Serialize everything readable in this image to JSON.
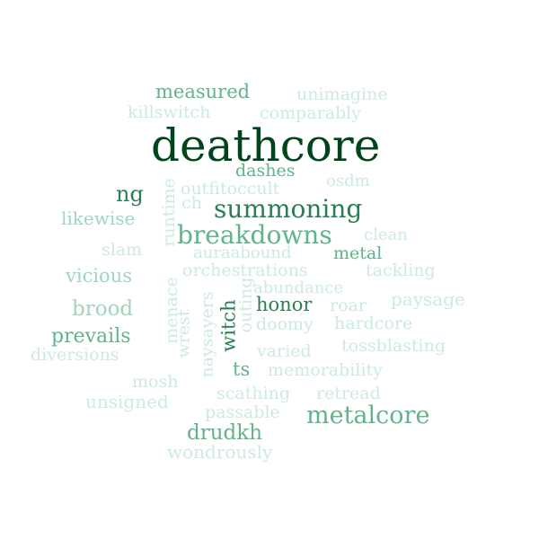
{
  "colors": {
    "background": "#ffffff",
    "darkest": "#00441b",
    "dark": "#2a7f52",
    "medium": "#5fb489",
    "light": "#9fd6bc",
    "pale": "#cdebdc"
  },
  "words": [
    {
      "text": "deathcore"
    },
    {
      "text": "measured"
    },
    {
      "text": "unimagine"
    },
    {
      "text": "killswitch"
    },
    {
      "text": "comparably"
    },
    {
      "text": "dashes"
    },
    {
      "text": "ng"
    },
    {
      "text": "outfitoccult"
    },
    {
      "text": "osdm"
    },
    {
      "text": "ch"
    },
    {
      "text": "summoning"
    },
    {
      "text": "likewise"
    },
    {
      "text": "runtime"
    },
    {
      "text": "breakdowns"
    },
    {
      "text": "clean"
    },
    {
      "text": "slam"
    },
    {
      "text": "auraabound"
    },
    {
      "text": "metal"
    },
    {
      "text": "vicious"
    },
    {
      "text": "orchestrations"
    },
    {
      "text": "tackling"
    },
    {
      "text": "abundance"
    },
    {
      "text": "menace"
    },
    {
      "text": "brood"
    },
    {
      "text": "naysayers"
    },
    {
      "text": "witch"
    },
    {
      "text": "outing"
    },
    {
      "text": "honor"
    },
    {
      "text": "roar"
    },
    {
      "text": "paysage"
    },
    {
      "text": "wrest"
    },
    {
      "text": "doomy"
    },
    {
      "text": "hardcore"
    },
    {
      "text": "prevails"
    },
    {
      "text": "varied"
    },
    {
      "text": "tossblasting"
    },
    {
      "text": "diversions"
    },
    {
      "text": "ts"
    },
    {
      "text": "memorability"
    },
    {
      "text": "mosh"
    },
    {
      "text": "scathing"
    },
    {
      "text": "retread"
    },
    {
      "text": "unsigned"
    },
    {
      "text": "passable"
    },
    {
      "text": "metalcore"
    },
    {
      "text": "drudkh"
    },
    {
      "text": "wondrously"
    }
  ]
}
